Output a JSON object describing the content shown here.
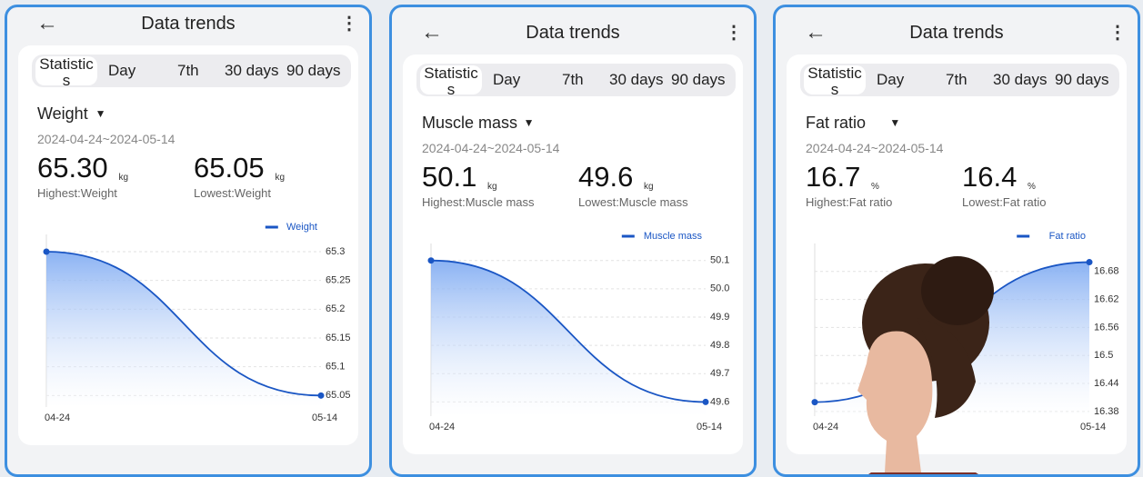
{
  "panels": [
    {
      "header": {
        "title": "Data trends"
      },
      "tabs": [
        "Statistics",
        "Day",
        "7th",
        "30 days",
        "90 days"
      ],
      "metric": "Weight",
      "date_range": "2024-04-24~2024-05-14",
      "highest": {
        "value": "65.30",
        "unit": "kg",
        "label": "Highest:Weight"
      },
      "lowest": {
        "value": "65.05",
        "unit": "kg",
        "label": "Lowest:Weight"
      }
    },
    {
      "header": {
        "title": "Data trends"
      },
      "tabs": [
        "Statistics",
        "Day",
        "7th",
        "30 days",
        "90 days"
      ],
      "metric": "Muscle mass",
      "date_range": "2024-04-24~2024-05-14",
      "highest": {
        "value": "50.1",
        "unit": "kg",
        "label": "Highest:Muscle mass"
      },
      "lowest": {
        "value": "49.6",
        "unit": "kg",
        "label": "Lowest:Muscle mass"
      }
    },
    {
      "header": {
        "title": "Data trends"
      },
      "tabs": [
        "Statistics",
        "Day",
        "7th",
        "30 days",
        "90 days"
      ],
      "metric": "Fat ratio",
      "date_range": "2024-04-24~2024-05-14",
      "highest": {
        "value": "16.7",
        "unit": "%",
        "label": "Highest:Fat ratio"
      },
      "lowest": {
        "value": "16.4",
        "unit": "%",
        "label": "Lowest:Fat ratio"
      }
    }
  ],
  "chart_data": [
    {
      "type": "line",
      "x": [
        "04-24",
        "05-14"
      ],
      "series": [
        {
          "name": "Weight",
          "color": "#1a56c4",
          "values": [
            65.3,
            65.05
          ]
        }
      ],
      "ylim": [
        65.03,
        65.33
      ],
      "yticks": [
        65.3,
        65.25,
        65.2,
        65.15,
        65.1,
        65.05
      ],
      "grid": true,
      "legend": "top-right"
    },
    {
      "type": "line",
      "x": [
        "04-24",
        "05-14"
      ],
      "series": [
        {
          "name": "Muscle mass",
          "color": "#1a56c4",
          "values": [
            50.1,
            49.6
          ]
        }
      ],
      "ylim": [
        49.55,
        50.16
      ],
      "yticks": [
        50.1,
        {
          "value": 50,
          "label": "50.0"
        },
        49.9,
        49.8,
        49.7,
        49.6
      ],
      "grid": true,
      "legend": "top-right"
    },
    {
      "type": "line",
      "x": [
        "04-24",
        "05-14"
      ],
      "series": [
        {
          "name": "Fat ratio",
          "color": "#1a56c4",
          "values": [
            16.4,
            16.7
          ]
        }
      ],
      "ylim": [
        16.37,
        16.74
      ],
      "yticks": [
        16.68,
        16.62,
        16.56,
        16.5,
        16.44,
        16.38
      ],
      "grid": true,
      "legend": "top-right"
    }
  ]
}
